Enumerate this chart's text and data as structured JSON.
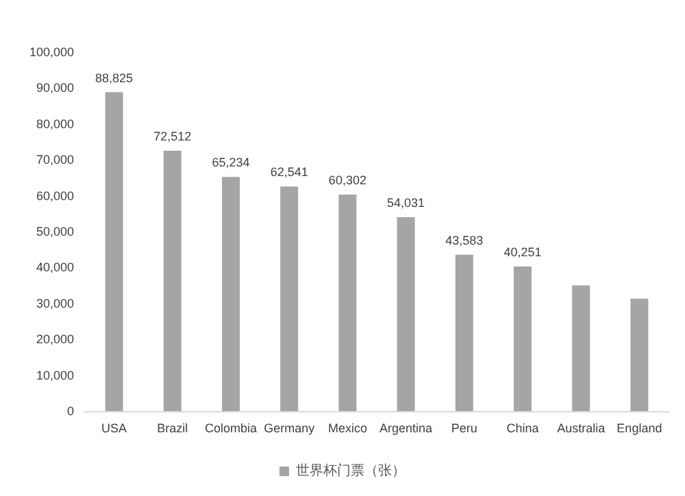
{
  "chart_data": {
    "type": "bar",
    "categories": [
      "USA",
      "Brazil",
      "Colombia",
      "Germany",
      "Mexico",
      "Argentina",
      "Peru",
      "China",
      "Australia",
      "England"
    ],
    "series": [
      {
        "name": "世界杯门票（张）",
        "color": "#a5a5a5",
        "values": [
          88825,
          72512,
          65234,
          62541,
          60302,
          54031,
          43583,
          40251,
          35000,
          31300
        ],
        "value_labels": [
          "88,825",
          "72,512",
          "65,234",
          "62,541",
          "60,302",
          "54,031",
          "43,583",
          "40,251",
          null,
          null
        ]
      }
    ],
    "ylim": [
      0,
      100000
    ],
    "yticks": [
      0,
      {
        "value": 10000,
        "label": "10,000"
      },
      {
        "value": 20000,
        "label": "20,000"
      },
      {
        "value": 30000,
        "label": "30,000"
      },
      {
        "value": 40000,
        "label": "40,000"
      },
      {
        "value": 50000,
        "label": "50,000"
      },
      {
        "value": 60000,
        "label": "60,000"
      },
      {
        "value": 70000,
        "label": "70,000"
      },
      {
        "value": 80000,
        "label": "80,000"
      },
      {
        "value": 90000,
        "label": "90,000"
      },
      {
        "value": 100000,
        "label": "100,000"
      }
    ],
    "grid": false,
    "legend": "bottom"
  }
}
